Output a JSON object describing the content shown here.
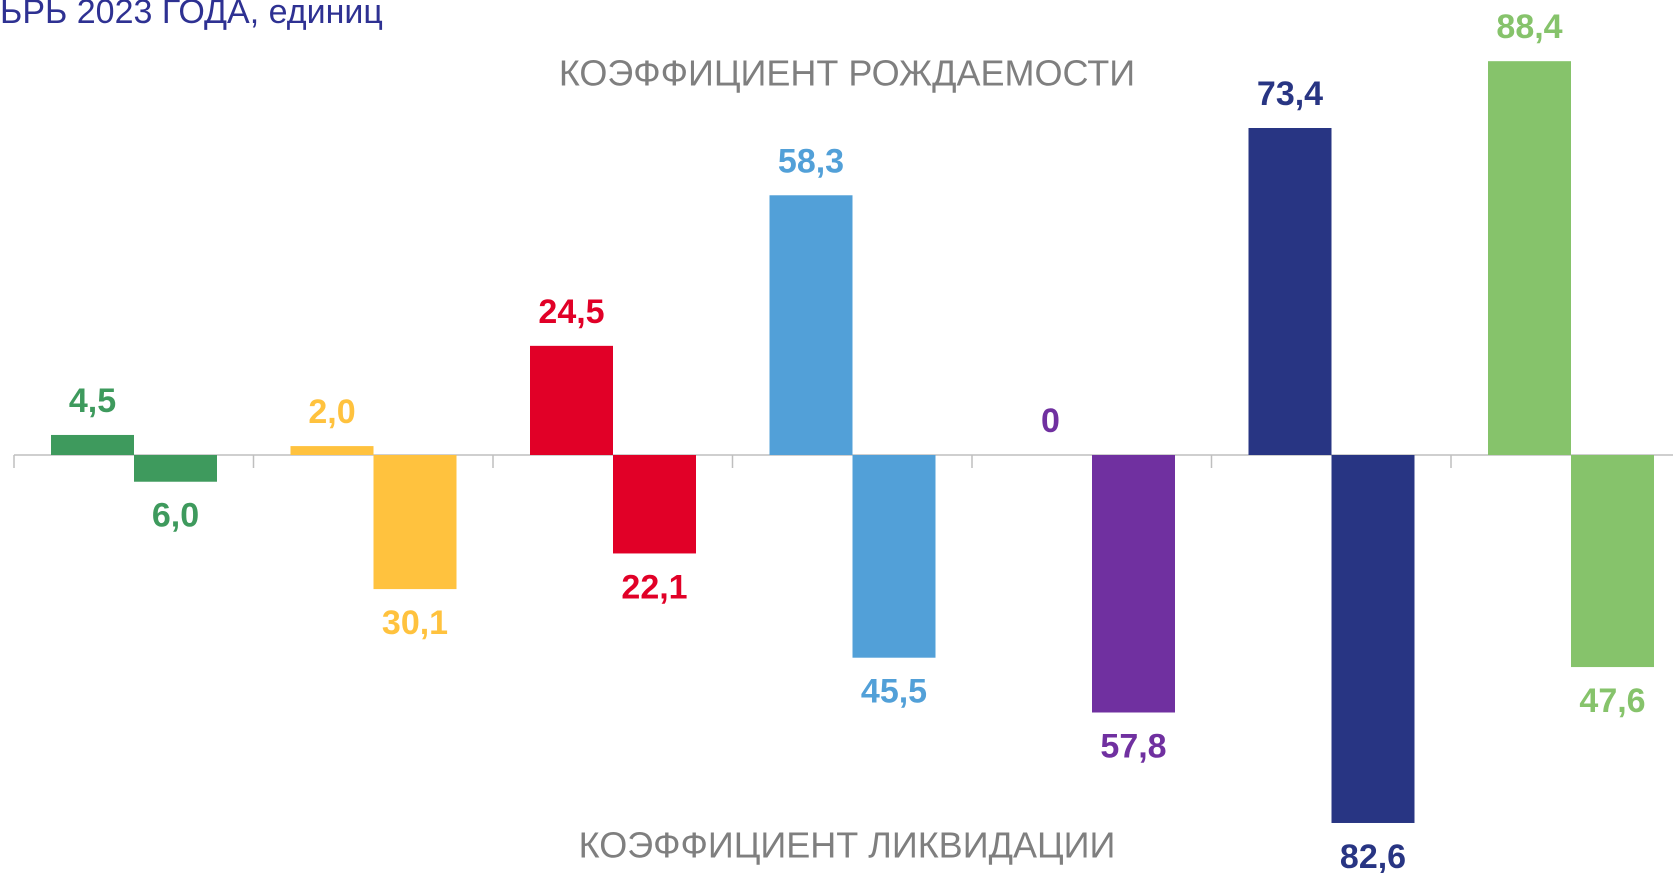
{
  "chart_data": {
    "type": "bar",
    "title": "ЬРЬ 2023 ГОДА, единиц",
    "categories": [
      null,
      null,
      null,
      null,
      null,
      null,
      null
    ],
    "colors": [
      "#3e9a5d",
      "#ffc23e",
      "#e10027",
      "#52a0d8",
      "#7030a0",
      "#283583",
      "#86c36b"
    ],
    "series": [
      {
        "name": "КОЭФФИЦИЕНТ РОЖДАЕМОСТИ",
        "direction": "up",
        "values": [
          4.5,
          2.0,
          24.5,
          58.3,
          0,
          73.4,
          88.4
        ],
        "value_labels": [
          "4,5",
          "2,0",
          "24,5",
          "58,3",
          "0",
          "73,4",
          "88,4"
        ]
      },
      {
        "name": "КОЭФФИЦИЕНТ ЛИКВИДАЦИИ",
        "direction": "down",
        "values": [
          6.0,
          30.1,
          22.1,
          45.5,
          57.8,
          82.6,
          47.6
        ],
        "value_labels": [
          "6,0",
          "30,1",
          "22,1",
          "45,5",
          "57,8",
          "82,6",
          "47,6"
        ]
      }
    ]
  }
}
